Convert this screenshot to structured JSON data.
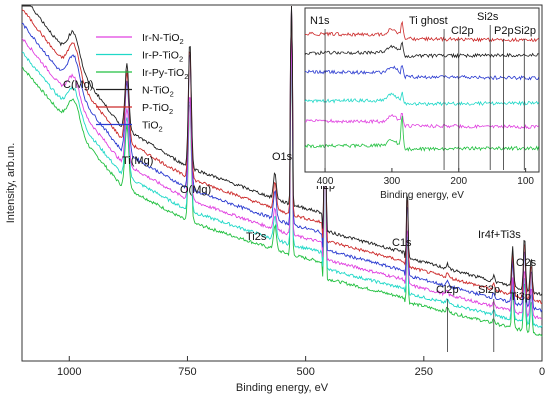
{
  "chart_data": [
    {
      "type": "line",
      "xlabel": "Binding energy, eV",
      "ylabel": "Intensity, arb.un.",
      "xlim": [
        1100,
        0
      ],
      "x_reversed": true,
      "xticks": [
        1000,
        750,
        500,
        250,
        0
      ],
      "legend_placement": "top-left",
      "series": [
        {
          "name": "Ir-N-TiO2",
          "label_main": "Ir-N-TiO",
          "label_sub": "2",
          "color": "#e040e0",
          "offset": 0.6
        },
        {
          "name": "Ir-P-TiO2",
          "label_main": "Ir-P-TiO",
          "label_sub": "2",
          "color": "#20d8c8",
          "offset": 0.3
        },
        {
          "name": "Ir-Py-TiO2",
          "label_main": "Ir-Py-TiO",
          "label_sub": "2",
          "color": "#22c040",
          "offset": 0.0
        },
        {
          "name": "N-TiO2",
          "label_main": "N-TiO",
          "label_sub": "2",
          "color": "#202020",
          "offset": 1.5
        },
        {
          "name": "P-TiO2",
          "label_main": "P-TiO",
          "label_sub": "2",
          "color": "#cc2a2a",
          "offset": 1.2
        },
        {
          "name": "TiO2",
          "label_main": "TiO",
          "label_sub": "2",
          "color": "#2a3ad0",
          "offset": 0.9
        }
      ],
      "peaks": [
        {
          "label": "C(Mg)",
          "be": 990,
          "width": 12,
          "height": 1.2
        },
        {
          "label": "Ti(Mg)",
          "be": 878,
          "width": 4,
          "height": 2.6
        },
        {
          "label": "O(Mg)",
          "be": 745,
          "width": 3,
          "height": 5.0
        },
        {
          "label": "Ti2s",
          "be": 565,
          "width": 3,
          "height": 1.0
        },
        {
          "label": "O1s",
          "be": 530,
          "width": 1.5,
          "height": 14.0
        },
        {
          "label": "Ti2p",
          "be": 459,
          "width": 1.5,
          "height": 10.0
        },
        {
          "label": "C1s",
          "be": 285,
          "width": 1.5,
          "height": 3.0
        },
        {
          "label": "Cl2p",
          "be": 200,
          "width": 2,
          "height": 0.2
        },
        {
          "label": "Si2p",
          "be": 102,
          "width": 2,
          "height": 0.2
        },
        {
          "label": "Ir4f+Ti3s",
          "be": 62,
          "width": 2,
          "height": 1.6
        },
        {
          "label": "O2s",
          "be": 23,
          "width": 2,
          "height": 1.4
        },
        {
          "label": "Ti3p",
          "be": 37,
          "width": 2,
          "height": 2.2
        }
      ]
    },
    {
      "type": "line",
      "inset": true,
      "xlabel": "Binding energy, eV",
      "xlim": [
        430,
        80
      ],
      "x_reversed": true,
      "xticks": [
        400,
        300,
        200,
        100
      ],
      "peaks": [
        {
          "label": "N1s",
          "be": 400
        },
        {
          "label": "Ti ghost",
          "be": 222
        },
        {
          "label": "Cl2p",
          "be": 200
        },
        {
          "label": "Si2s",
          "be": 153
        },
        {
          "label": "P2p",
          "be": 133
        },
        {
          "label": "Si2p",
          "be": 102
        }
      ],
      "inset_series_order": [
        "P-TiO2",
        "N-TiO2",
        "TiO2",
        "Ir-P-TiO2",
        "Ir-N-TiO2",
        "Ir-Py-TiO2"
      ]
    }
  ],
  "annotations": {
    "main": [
      {
        "text": "C(Mg)",
        "be": 1001
      },
      {
        "text": "Ti(Mg)",
        "be": 880
      },
      {
        "text": "O(Mg)",
        "be": 745
      },
      {
        "text": "Ti2s",
        "be": 575
      },
      {
        "text": "O1s",
        "be": 533
      },
      {
        "text": "Ti2p",
        "be": 460
      },
      {
        "text": "C1s",
        "be": 285
      },
      {
        "text": "Cl2p",
        "be": 200
      },
      {
        "text": "Si2p",
        "be": 102
      },
      {
        "text": "Ir4f+Ti3s",
        "be": 62
      },
      {
        "text": "O2s",
        "be": 23
      },
      {
        "text": "Ti3p",
        "be": 40
      }
    ],
    "inset": [
      {
        "text": "N1s",
        "be": 400
      },
      {
        "text": "Ti ghost",
        "be": 222
      },
      {
        "text": "Cl2p",
        "be": 200
      },
      {
        "text": "Si2s",
        "be": 153
      },
      {
        "text": "P2p",
        "be": 133
      },
      {
        "text": "Si2p",
        "be": 102
      }
    ]
  }
}
